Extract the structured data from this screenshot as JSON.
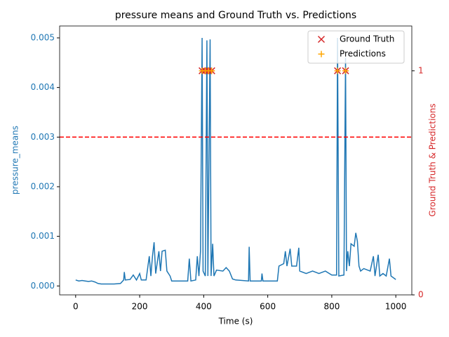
{
  "chart_data": {
    "type": "line",
    "title": "pressure means and Ground Truth vs. Predictions",
    "xlabel": "Time (s)",
    "ylabel": "pressure_means",
    "y2label": "Ground Truth & Predictions",
    "line": {
      "color": "#1f77b4",
      "x": [
        0,
        10,
        20,
        30,
        40,
        50,
        60,
        70,
        80,
        100,
        120,
        140,
        150,
        152,
        155,
        170,
        180,
        190,
        200,
        205,
        220,
        230,
        235,
        240,
        245,
        250,
        260,
        265,
        270,
        280,
        285,
        295,
        300,
        330,
        350,
        355,
        360,
        375,
        380,
        385,
        390,
        395,
        398,
        405,
        410,
        413,
        420,
        423,
        428,
        432,
        440,
        460,
        470,
        480,
        490,
        500,
        540,
        542,
        545,
        560,
        580,
        582,
        585,
        620,
        630,
        635,
        650,
        655,
        660,
        670,
        675,
        690,
        697,
        700,
        720,
        740,
        760,
        780,
        800,
        815,
        818,
        822,
        838,
        843,
        846,
        850,
        855,
        860,
        870,
        875,
        880,
        885,
        890,
        900,
        920,
        930,
        935,
        945,
        950,
        960,
        970,
        980,
        985,
        1000
      ],
      "values": [
        0.00012,
        0.0001,
        0.00011,
        0.0001,
        9e-05,
        0.0001,
        8e-05,
        5e-05,
        4e-05,
        4e-05,
        4e-05,
        5e-05,
        0.00012,
        0.00028,
        0.00012,
        0.00013,
        0.00022,
        0.00012,
        0.00025,
        0.00012,
        0.00012,
        0.0006,
        0.0002,
        0.0006,
        0.00088,
        0.00025,
        0.0007,
        0.0003,
        0.0007,
        0.00072,
        0.0003,
        0.0002,
        0.0001,
        0.0001,
        0.0001,
        0.00055,
        0.0001,
        0.00012,
        0.0006,
        0.0002,
        0.0007,
        0.005,
        0.0003,
        0.0002,
        0.00495,
        0.0002,
        0.00497,
        0.0002,
        0.00085,
        0.0002,
        0.00032,
        0.0003,
        0.00037,
        0.0003,
        0.00014,
        0.00012,
        0.0001,
        0.00079,
        0.0001,
        0.0001,
        0.0001,
        0.00025,
        0.0001,
        0.0001,
        0.0001,
        0.0004,
        0.00045,
        0.0007,
        0.0004,
        0.00075,
        0.0004,
        0.0004,
        0.00077,
        0.0003,
        0.00025,
        0.0003,
        0.00025,
        0.0003,
        0.00022,
        0.00022,
        0.005,
        0.0002,
        0.00022,
        0.0046,
        0.0003,
        0.0007,
        0.0004,
        0.00085,
        0.0008,
        0.00107,
        0.0009,
        0.0004,
        0.0003,
        0.00035,
        0.0003,
        0.0006,
        0.0002,
        0.00063,
        0.0002,
        0.00025,
        0.0002,
        0.00055,
        0.0002,
        0.00013
      ]
    },
    "threshold": {
      "value": 0.003,
      "color": "#ff0000"
    },
    "series": [
      {
        "name": "Ground Truth",
        "color": "#d62728",
        "marker": "x",
        "axis": "y2",
        "x": [
          395,
          405,
          415,
          425,
          818,
          843
        ],
        "values": [
          1,
          1,
          1,
          1,
          1,
          1
        ]
      },
      {
        "name": "Predictions",
        "color": "#ffa500",
        "marker": "+",
        "axis": "y2",
        "x": [
          395,
          405,
          415,
          425,
          818,
          843
        ],
        "values": [
          1,
          1,
          1,
          1,
          1,
          1
        ]
      }
    ],
    "xlim": [
      -50,
      1050
    ],
    "xticks": [
      0,
      200,
      400,
      600,
      800,
      1000
    ],
    "ylim": [
      -0.00018,
      0.00524
    ],
    "yticks": [
      {
        "value": 0,
        "label": "0.000"
      },
      {
        "value": 0.001,
        "label": "0.001"
      },
      {
        "value": 0.002,
        "label": "0.002"
      },
      {
        "value": 0.003,
        "label": "0.003"
      },
      {
        "value": 0.004,
        "label": "0.004"
      },
      {
        "value": 0.005,
        "label": "0.005"
      }
    ],
    "y2lim": [
      0,
      1.2
    ],
    "y2ticks": [
      0,
      1
    ],
    "ycolor": "#1f77b4",
    "y2color": "#d62728",
    "legend": "upper right"
  }
}
